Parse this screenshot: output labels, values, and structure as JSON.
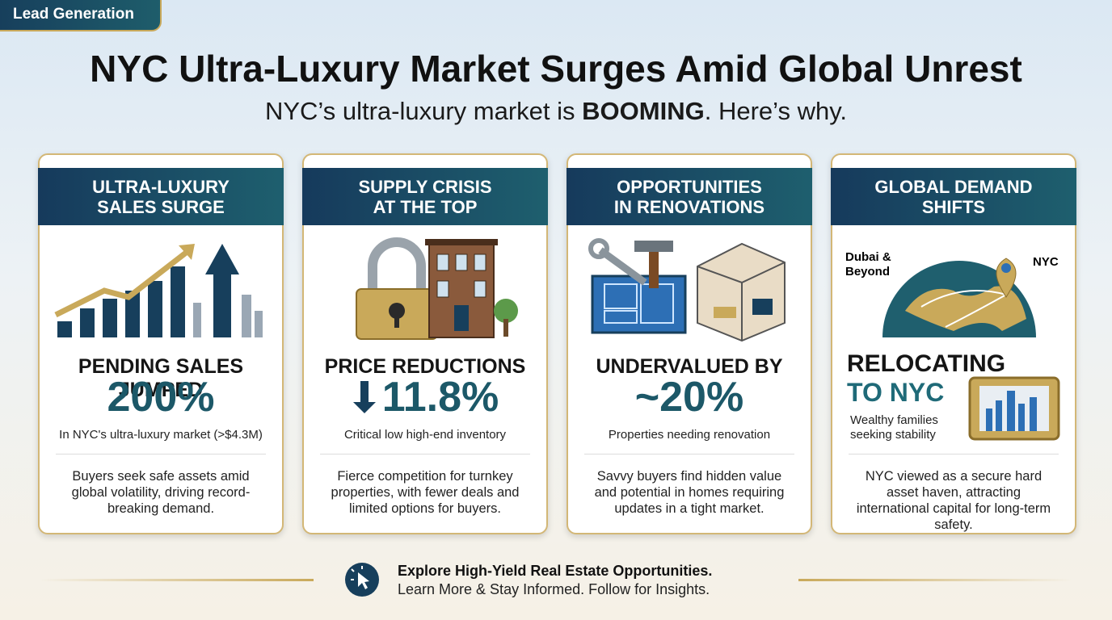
{
  "badge": "Lead Generation",
  "title": "NYC Ultra-Luxury Market Surges Amid Global Unrest",
  "subtitle": {
    "before": "NYC’s ultra-luxury market is ",
    "emphasis": "BOOMING",
    "after": ". Here’s why."
  },
  "cards": [
    {
      "header": [
        "ULTRA-LUXURY",
        "SALES SURGE"
      ],
      "stat_label": [
        "PENDING SALES JUMPED"
      ],
      "stat_value": "200%",
      "note": "In NYC's ultra-luxury market (>$4.3M)",
      "description": "Buyers seek safe assets amid global volatility, driving record-breaking demand."
    },
    {
      "header": [
        "SUPPLY CRISIS",
        "AT THE TOP"
      ],
      "stat_label": [
        "PRICE REDUCTIONS"
      ],
      "stat_value": "11.8%",
      "note": "Critical low high-end inventory",
      "description": "Fierce competition for turnkey properties, with fewer deals and limited options for buyers."
    },
    {
      "header": [
        "OPPORTUNITIES",
        "IN RENOVATIONS"
      ],
      "stat_label": [
        "UNDERVALUED BY"
      ],
      "stat_value": "~20%",
      "note": "Properties needing renovation",
      "description": "Savvy buyers find hidden value and potential in homes requiring updates in a tight market."
    },
    {
      "header": [
        "GLOBAL DEMAND",
        "SHIFTS"
      ],
      "stat_label": [
        "RELOCATING",
        "TO NYC"
      ],
      "note": "Wealthy families seeking stability",
      "description": "NYC viewed as a secure hard asset haven, attracting international capital for long-term safety.",
      "map_labels": [
        "Dubai & Beyond",
        "NYC"
      ]
    }
  ],
  "footer": {
    "headline": "Explore High-Yield Real Estate Opportunities.",
    "subline": "Learn More & Stay Informed. Follow for Insights."
  }
}
